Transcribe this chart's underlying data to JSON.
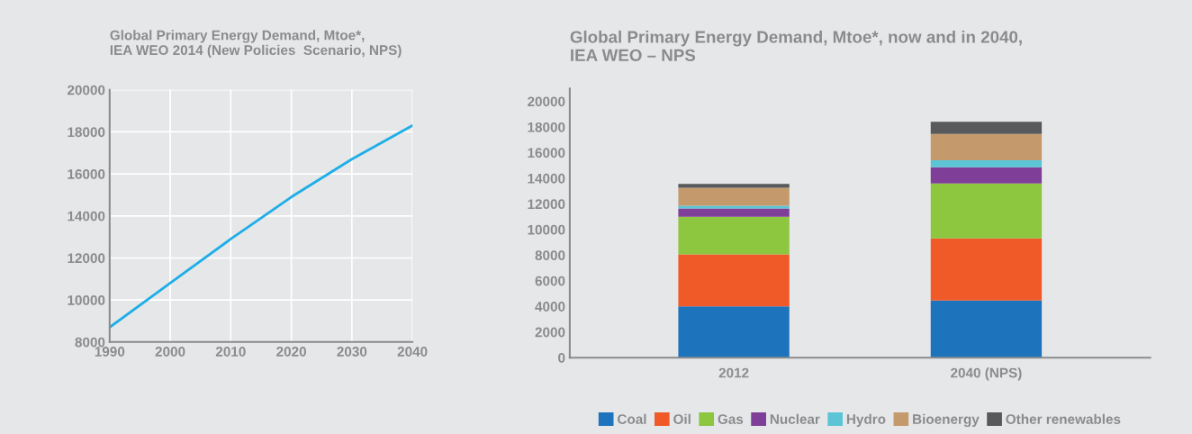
{
  "chart_data": [
    {
      "type": "line",
      "title": "Global Primary Energy Demand, Mtoe*,\nIEA WEO 2014 (New Policies  Scenario, NPS)",
      "x": [
        1990,
        2000,
        2010,
        2020,
        2030,
        2040
      ],
      "series": [
        {
          "color": "#1eaee8",
          "values": [
            8700,
            10800,
            12900,
            14900,
            16700,
            18300
          ]
        }
      ],
      "xlim": [
        1990,
        2040
      ],
      "xticks": [
        1990,
        2000,
        2010,
        2020,
        2030,
        2040
      ],
      "ylim": [
        8000,
        20000
      ],
      "yticks": [
        8000,
        10000,
        12000,
        14000,
        16000,
        18000,
        20000
      ],
      "grid": true,
      "marker": "none",
      "line_style": "solid"
    },
    {
      "type": "bar",
      "stacked": true,
      "title": "Global Primary Energy Demand, Mtoe*, now and in 2040,\nIEA WEO – NPS",
      "categories": [
        "2012",
        "2040 (NPS)"
      ],
      "series": [
        {
          "name": "Coal",
          "color": "#1e73bd",
          "values": [
            4000,
            4450
          ]
        },
        {
          "name": "Oil",
          "color": "#f05a28",
          "values": [
            4050,
            4850
          ]
        },
        {
          "name": "Gas",
          "color": "#8dc63f",
          "values": [
            2950,
            4300
          ]
        },
        {
          "name": "Nuclear",
          "color": "#7f3f98",
          "values": [
            650,
            1250
          ]
        },
        {
          "name": "Hydro",
          "color": "#5bc5d6",
          "values": [
            200,
            550
          ]
        },
        {
          "name": "Bioenergy",
          "color": "#c49a6c",
          "values": [
            1400,
            2050
          ]
        },
        {
          "name": "Other renewables",
          "color": "#58595b",
          "values": [
            300,
            950
          ]
        }
      ],
      "ylim": [
        0,
        21000
      ],
      "yticks": [
        0,
        2000,
        4000,
        6000,
        8000,
        10000,
        12000,
        14000,
        16000,
        18000,
        20000
      ],
      "grid": false,
      "legend": "bottom"
    }
  ]
}
